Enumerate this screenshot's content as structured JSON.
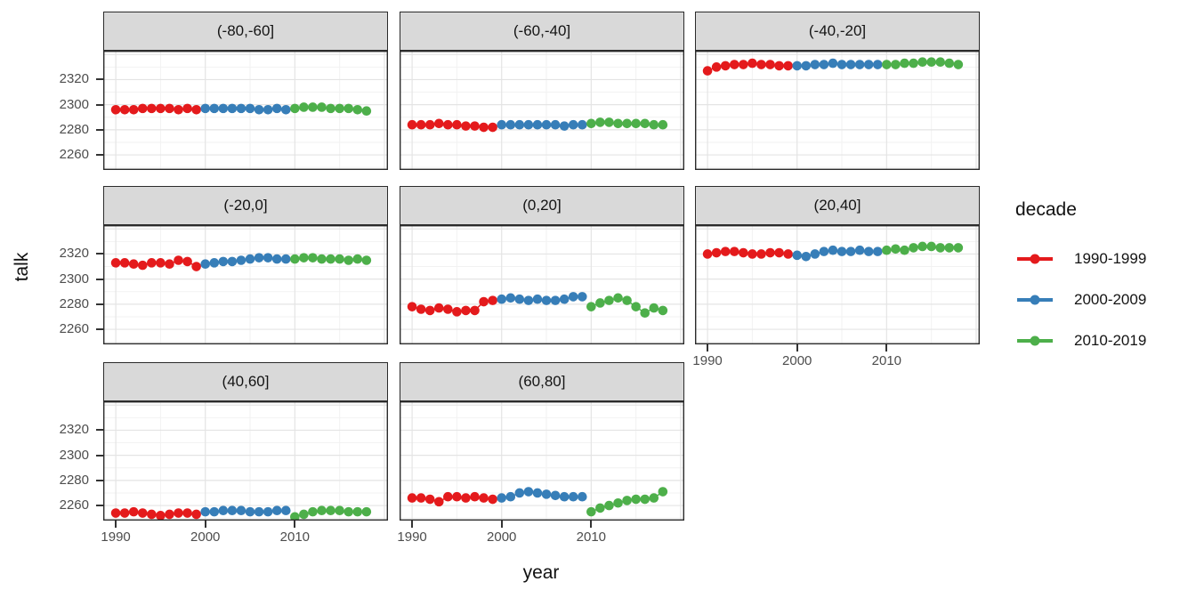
{
  "figure": {
    "background": "#ffffff"
  },
  "chart_data": {
    "type": "scatter",
    "title": "",
    "xlabel": "year",
    "ylabel": "talk",
    "x_ticks": [
      1990,
      2000,
      2010
    ],
    "y_ticks": [
      2260,
      2280,
      2300,
      2320
    ],
    "x_minor": [
      1995,
      2005,
      2015
    ],
    "y_minor": [
      2250,
      2270,
      2290,
      2310,
      2330
    ],
    "x_major_grid": [
      1990,
      2000,
      2010,
      2020
    ],
    "y_major_grid": [
      2260,
      2280,
      2300,
      2320,
      2340
    ],
    "x_range": [
      1988.6,
      2020.4
    ],
    "y_range": [
      2248,
      2343
    ],
    "grid": "major+minor",
    "legend": {
      "title": "decade",
      "position": "right",
      "entries": [
        {
          "label": "1990-1999",
          "color": "#E41A1C"
        },
        {
          "label": "2000-2009",
          "color": "#377EB8"
        },
        {
          "label": "2010-2019",
          "color": "#4DAF4A"
        }
      ]
    },
    "series_x": [
      [
        1990,
        1991,
        1992,
        1993,
        1994,
        1995,
        1996,
        1997,
        1998,
        1999
      ],
      [
        2000,
        2001,
        2002,
        2003,
        2004,
        2005,
        2006,
        2007,
        2008,
        2009
      ],
      [
        2010,
        2011,
        2012,
        2013,
        2014,
        2015,
        2016,
        2017,
        2018
      ]
    ],
    "facets": [
      {
        "label": "(-80,-60]",
        "series": [
          {
            "name": "1990-1999",
            "values": [
              2296,
              2296,
              2296,
              2297,
              2297,
              2297,
              2297,
              2296,
              2297,
              2296
            ]
          },
          {
            "name": "2000-2009",
            "values": [
              2297,
              2297,
              2297,
              2297,
              2297,
              2297,
              2296,
              2296,
              2297,
              2296
            ]
          },
          {
            "name": "2010-2019",
            "values": [
              2297,
              2298,
              2298,
              2298,
              2297,
              2297,
              2297,
              2296,
              2295
            ]
          }
        ]
      },
      {
        "label": "(-60,-40]",
        "series": [
          {
            "name": "1990-1999",
            "values": [
              2284,
              2284,
              2284,
              2285,
              2284,
              2284,
              2283,
              2283,
              2282,
              2282
            ]
          },
          {
            "name": "2000-2009",
            "values": [
              2284,
              2284,
              2284,
              2284,
              2284,
              2284,
              2284,
              2283,
              2284,
              2284
            ]
          },
          {
            "name": "2010-2019",
            "values": [
              2285,
              2286,
              2286,
              2285,
              2285,
              2285,
              2285,
              2284,
              2284
            ]
          }
        ]
      },
      {
        "label": "(-40,-20]",
        "series": [
          {
            "name": "1990-1999",
            "values": [
              2327,
              2330,
              2331,
              2332,
              2332,
              2333,
              2332,
              2332,
              2331,
              2331
            ]
          },
          {
            "name": "2000-2009",
            "values": [
              2331,
              2331,
              2332,
              2332,
              2333,
              2332,
              2332,
              2332,
              2332,
              2332
            ]
          },
          {
            "name": "2010-2019",
            "values": [
              2332,
              2332,
              2333,
              2333,
              2334,
              2334,
              2334,
              2333,
              2332
            ]
          }
        ]
      },
      {
        "label": "(-20,0]",
        "series": [
          {
            "name": "1990-1999",
            "values": [
              2313,
              2313,
              2312,
              2311,
              2313,
              2313,
              2312,
              2315,
              2314,
              2310
            ]
          },
          {
            "name": "2000-2009",
            "values": [
              2312,
              2313,
              2314,
              2314,
              2315,
              2316,
              2317,
              2317,
              2316,
              2316
            ]
          },
          {
            "name": "2010-2019",
            "values": [
              2316,
              2317,
              2317,
              2316,
              2316,
              2316,
              2315,
              2316,
              2315
            ]
          }
        ]
      },
      {
        "label": "(0,20]",
        "series": [
          {
            "name": "1990-1999",
            "values": [
              2278,
              2276,
              2275,
              2277,
              2276,
              2274,
              2275,
              2275,
              2282,
              2283
            ]
          },
          {
            "name": "2000-2009",
            "values": [
              2284,
              2285,
              2284,
              2283,
              2284,
              2283,
              2283,
              2284,
              2286,
              2286
            ]
          },
          {
            "name": "2010-2019",
            "values": [
              2278,
              2281,
              2283,
              2285,
              2283,
              2278,
              2273,
              2277,
              2275
            ]
          }
        ]
      },
      {
        "label": "(20,40]",
        "series": [
          {
            "name": "1990-1999",
            "values": [
              2320,
              2321,
              2322,
              2322,
              2321,
              2320,
              2320,
              2321,
              2321,
              2320
            ]
          },
          {
            "name": "2000-2009",
            "values": [
              2319,
              2318,
              2320,
              2322,
              2323,
              2322,
              2322,
              2323,
              2322,
              2322
            ]
          },
          {
            "name": "2010-2019",
            "values": [
              2323,
              2324,
              2323,
              2325,
              2326,
              2326,
              2325,
              2325,
              2325
            ]
          }
        ]
      },
      {
        "label": "(40,60]",
        "series": [
          {
            "name": "1990-1999",
            "values": [
              2254,
              2254,
              2255,
              2254,
              2253,
              2252,
              2253,
              2254,
              2254,
              2253
            ]
          },
          {
            "name": "2000-2009",
            "values": [
              2255,
              2255,
              2256,
              2256,
              2256,
              2255,
              2255,
              2255,
              2256,
              2256
            ]
          },
          {
            "name": "2010-2019",
            "values": [
              2251,
              2253,
              2255,
              2256,
              2256,
              2256,
              2255,
              2255,
              2255
            ]
          }
        ]
      },
      {
        "label": "(60,80]",
        "series": [
          {
            "name": "1990-1999",
            "values": [
              2266,
              2266,
              2265,
              2263,
              2267,
              2267,
              2266,
              2267,
              2266,
              2265
            ]
          },
          {
            "name": "2000-2009",
            "values": [
              2266,
              2267,
              2270,
              2271,
              2270,
              2269,
              2268,
              2267,
              2267,
              2267
            ]
          },
          {
            "name": "2010-2019",
            "values": [
              2255,
              2258,
              2260,
              2262,
              2264,
              2265,
              2265,
              2266,
              2271
            ]
          }
        ]
      }
    ]
  }
}
